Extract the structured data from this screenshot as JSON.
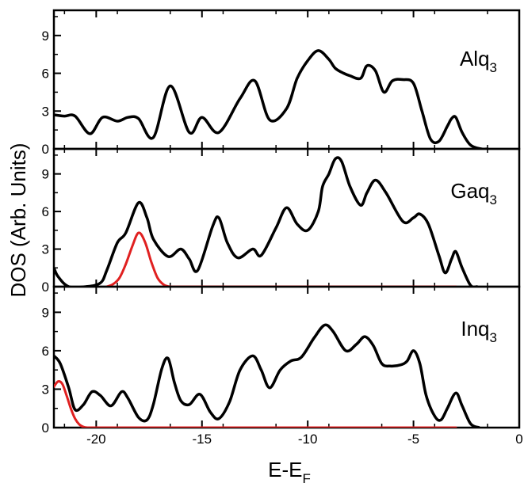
{
  "chart_data": {
    "type": "line",
    "xlabel": "E-E",
    "xlabel_subscript": "F",
    "ylabel": "DOS (Arb. Units)",
    "xlim": [
      -22,
      0
    ],
    "x_ticks": [
      -20,
      -15,
      -10,
      -5,
      0
    ],
    "x_tick_labels": [
      "-20",
      "-15",
      "-10",
      "-5",
      "0"
    ],
    "y_ticks": [
      0,
      3,
      6,
      9
    ],
    "y_tick_labels": [
      "0",
      "3",
      "6",
      "9"
    ],
    "grid": false,
    "colors": {
      "total": "#000000",
      "projected": "#e02020"
    },
    "panels": [
      {
        "label": "Alq",
        "label_subscript": "3",
        "ylim": [
          0,
          11
        ],
        "series": [
          {
            "role": "total",
            "x": [
              -22,
              -21.5,
              -21,
              -20.3,
              -19.7,
              -19,
              -18.5,
              -18,
              -17.3,
              -16.5,
              -15.6,
              -15,
              -14.2,
              -13.2,
              -12.5,
              -11.8,
              -11,
              -10.5,
              -10,
              -9.5,
              -9,
              -8.7,
              -8.3,
              -8,
              -7.5,
              -7.2,
              -6.8,
              -6.4,
              -6,
              -5.5,
              -5,
              -4.6,
              -4.2,
              -3.8,
              -3.4,
              -3.2,
              -3,
              -2.7,
              -2.3,
              -1.8,
              -1.5
            ],
            "y": [
              2.7,
              2.6,
              2.6,
              1.2,
              2.5,
              2.2,
              2.5,
              2.4,
              0.9,
              5.0,
              1.3,
              2.5,
              1.3,
              4.0,
              5.4,
              2.3,
              3.2,
              5.6,
              7.0,
              7.8,
              7.1,
              6.4,
              6.0,
              5.8,
              5.6,
              6.6,
              6.2,
              4.5,
              5.4,
              5.5,
              5.2,
              3.0,
              0.8,
              0.6,
              1.8,
              2.4,
              2.5,
              1.3,
              0.3,
              0.0,
              0.0
            ]
          }
        ]
      },
      {
        "label": "Gaq",
        "label_subscript": "3",
        "ylim": [
          0,
          11
        ],
        "series": [
          {
            "role": "total",
            "x": [
              -22,
              -21.8,
              -21.3,
              -20.5,
              -19.8,
              -19.5,
              -19,
              -18.6,
              -18,
              -17.6,
              -17.3,
              -16.6,
              -16,
              -15.6,
              -15.2,
              -14.5,
              -14.2,
              -13.8,
              -13.3,
              -12.6,
              -12.2,
              -11.5,
              -11,
              -10.5,
              -10,
              -9.5,
              -9.3,
              -9,
              -8.7,
              -8.4,
              -8,
              -7.5,
              -7.2,
              -6.8,
              -6.3,
              -5.5,
              -5,
              -4.7,
              -4.3,
              -3.8,
              -3.5,
              -3.2,
              -3,
              -2.7,
              -2.3,
              -2
            ],
            "y": [
              1.5,
              0.8,
              0.0,
              0.0,
              0.3,
              1.3,
              3.5,
              4.3,
              6.7,
              5.5,
              3.8,
              2.4,
              3.0,
              2.2,
              1.3,
              4.8,
              5.5,
              3.5,
              2.3,
              3.0,
              2.5,
              4.7,
              6.3,
              5.0,
              4.5,
              6.0,
              8.0,
              9.0,
              10.2,
              10.0,
              8.0,
              6.5,
              7.5,
              8.5,
              7.5,
              5.2,
              5.5,
              5.8,
              5.0,
              2.5,
              1.1,
              2.2,
              2.8,
              1.5,
              0.1,
              0.0
            ]
          },
          {
            "role": "projected",
            "x": [
              -19.5,
              -19.2,
              -18.9,
              -18.6,
              -18.3,
              -18,
              -17.7,
              -17.4,
              -17.1,
              -16.8,
              -16.5,
              -16,
              -14,
              -12,
              -10,
              -8,
              -6,
              -4,
              -3
            ],
            "y": [
              0.0,
              0.2,
              0.7,
              1.8,
              3.2,
              4.3,
              3.6,
              2.0,
              0.7,
              0.15,
              0.0,
              0.0,
              0.0,
              0.0,
              0.0,
              0.0,
              0.0,
              0.0,
              0.0
            ]
          }
        ]
      },
      {
        "label": "Inq",
        "label_subscript": "3",
        "ylim": [
          0,
          11
        ],
        "series": [
          {
            "role": "total",
            "x": [
              -22,
              -21.7,
              -21.3,
              -21,
              -20.6,
              -20.2,
              -19.8,
              -19.3,
              -18.8,
              -18.5,
              -18,
              -17.6,
              -17.3,
              -16.9,
              -16.6,
              -16.3,
              -16,
              -15.6,
              -15.1,
              -14.6,
              -14.2,
              -13.7,
              -13.2,
              -12.6,
              -12.2,
              -11.8,
              -11.3,
              -10.8,
              -10.3,
              -9.7,
              -9.2,
              -8.8,
              -8.2,
              -7.7,
              -7.3,
              -6.9,
              -6.5,
              -6.1,
              -5.6,
              -5.3,
              -5,
              -4.7,
              -4.4,
              -4,
              -3.7,
              -3.4,
              -3,
              -2.7,
              -2.3,
              -1.9
            ],
            "y": [
              5.6,
              5.0,
              3.1,
              1.4,
              1.8,
              2.8,
              2.5,
              1.7,
              2.8,
              2.3,
              0.8,
              0.6,
              1.8,
              4.6,
              5.4,
              3.5,
              2.1,
              1.8,
              2.6,
              1.2,
              0.7,
              2.0,
              4.5,
              5.6,
              4.5,
              3.1,
              4.5,
              5.2,
              5.5,
              7.0,
              8.0,
              7.5,
              6.0,
              6.5,
              7.1,
              6.4,
              5.0,
              4.8,
              4.9,
              5.2,
              6.0,
              5.0,
              2.5,
              0.9,
              0.6,
              1.5,
              2.7,
              1.7,
              0.3,
              0.0
            ]
          },
          {
            "role": "projected",
            "x": [
              -22,
              -21.8,
              -21.6,
              -21.4,
              -21.2,
              -21,
              -20.8,
              -20.6,
              -20.4,
              -20,
              -18,
              -16,
              -14,
              -12,
              -10,
              -8,
              -6,
              -4,
              -3
            ],
            "y": [
              3.2,
              3.6,
              3.4,
              2.5,
              1.5,
              0.7,
              0.25,
              0.05,
              0.0,
              0.0,
              0.0,
              0.0,
              0.0,
              0.0,
              0.0,
              0.0,
              0.0,
              0.0,
              0.0
            ]
          }
        ]
      }
    ]
  }
}
